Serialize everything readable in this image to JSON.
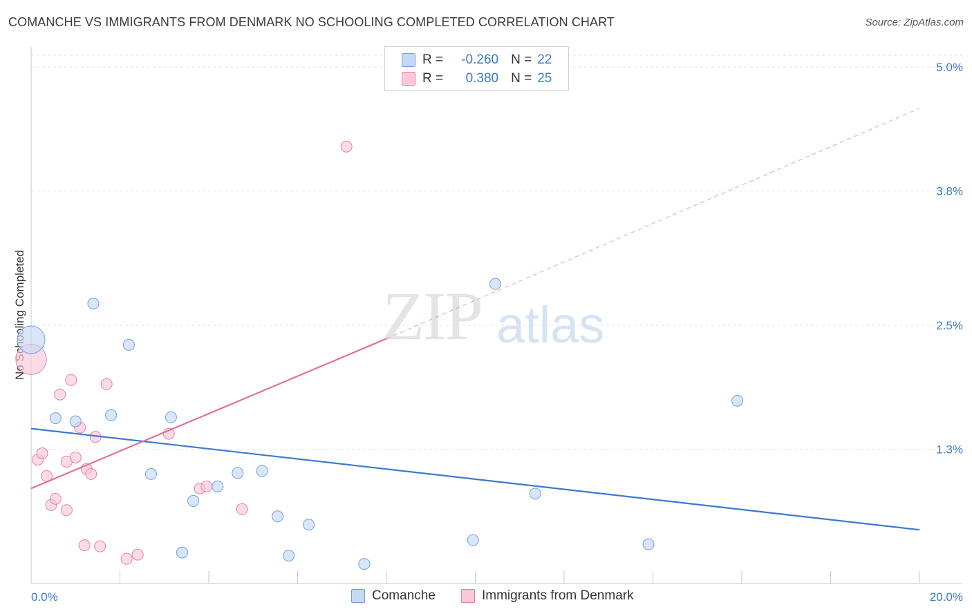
{
  "title": "COMANCHE VS IMMIGRANTS FROM DENMARK NO SCHOOLING COMPLETED CORRELATION CHART",
  "source": "Source: ZipAtlas.com",
  "watermark": {
    "zip": "ZIP",
    "atlas": "atlas"
  },
  "legend": {
    "rows": [
      {
        "r_label": "R =",
        "r_value": "-0.260",
        "n_label": "N =",
        "n_value": "22"
      },
      {
        "r_label": "R =",
        "r_value": "0.380",
        "n_label": "N =",
        "n_value": "25"
      }
    ]
  },
  "bottom_legend": [
    "Comanche",
    "Immigrants from Denmark"
  ],
  "chart_data": {
    "type": "scatter",
    "ylabel": "No Schooling Completed",
    "xlim": [
      0,
      20
    ],
    "ylim": [
      0,
      5.2
    ],
    "x_tick_labels": [
      "0.0%",
      "20.0%"
    ],
    "y_ticks": [
      1.3,
      2.5,
      3.8,
      5.0
    ],
    "y_tick_labels": [
      "1.3%",
      "2.5%",
      "3.8%",
      "5.0%"
    ],
    "grid": true,
    "colors": {
      "comanche": "#6f9ee0",
      "comanche_fill": "#c5d9f4",
      "denmark": "#e87fa3",
      "denmark_fill": "#f9c9d8",
      "blue_line": "#3b78cf",
      "pink_line": "#e2709a",
      "axis_text": "#3b78cf"
    },
    "series": [
      {
        "name": "Comanche",
        "points": [
          {
            "x": 0.0,
            "y": 2.36,
            "big": true
          },
          {
            "x": 0.55,
            "y": 1.6
          },
          {
            "x": 1.0,
            "y": 1.57
          },
          {
            "x": 1.4,
            "y": 2.71
          },
          {
            "x": 1.8,
            "y": 1.63
          },
          {
            "x": 2.2,
            "y": 2.31
          },
          {
            "x": 2.7,
            "y": 1.06
          },
          {
            "x": 3.15,
            "y": 1.61
          },
          {
            "x": 3.4,
            "y": 0.3
          },
          {
            "x": 3.65,
            "y": 0.8
          },
          {
            "x": 4.2,
            "y": 0.94
          },
          {
            "x": 4.65,
            "y": 1.07
          },
          {
            "x": 5.2,
            "y": 1.09
          },
          {
            "x": 5.55,
            "y": 0.65
          },
          {
            "x": 5.8,
            "y": 0.27
          },
          {
            "x": 6.25,
            "y": 0.57
          },
          {
            "x": 7.5,
            "y": 0.19
          },
          {
            "x": 9.95,
            "y": 0.42
          },
          {
            "x": 10.45,
            "y": 2.9
          },
          {
            "x": 11.35,
            "y": 0.87
          },
          {
            "x": 13.9,
            "y": 0.38
          },
          {
            "x": 15.9,
            "y": 1.77
          }
        ],
        "trend": {
          "x0": 0,
          "y0": 1.5,
          "x1": 20,
          "y1": 0.52
        }
      },
      {
        "name": "Immigrants from Denmark",
        "points": [
          {
            "x": 0.0,
            "y": 2.17,
            "big": true
          },
          {
            "x": 0.15,
            "y": 1.2
          },
          {
            "x": 0.25,
            "y": 1.26
          },
          {
            "x": 0.35,
            "y": 1.04
          },
          {
            "x": 0.45,
            "y": 0.76
          },
          {
            "x": 0.55,
            "y": 0.82
          },
          {
            "x": 0.65,
            "y": 1.83
          },
          {
            "x": 0.8,
            "y": 1.18
          },
          {
            "x": 0.8,
            "y": 0.71
          },
          {
            "x": 0.9,
            "y": 1.97
          },
          {
            "x": 1.0,
            "y": 1.22
          },
          {
            "x": 1.1,
            "y": 1.51
          },
          {
            "x": 1.2,
            "y": 0.37
          },
          {
            "x": 1.25,
            "y": 1.11
          },
          {
            "x": 1.35,
            "y": 1.06
          },
          {
            "x": 1.45,
            "y": 1.42
          },
          {
            "x": 1.55,
            "y": 0.36
          },
          {
            "x": 1.7,
            "y": 1.93
          },
          {
            "x": 2.15,
            "y": 0.24
          },
          {
            "x": 2.4,
            "y": 0.28
          },
          {
            "x": 3.1,
            "y": 1.45
          },
          {
            "x": 3.8,
            "y": 0.92
          },
          {
            "x": 3.95,
            "y": 0.94
          },
          {
            "x": 4.75,
            "y": 0.72
          },
          {
            "x": 7.1,
            "y": 4.23
          }
        ],
        "trend": {
          "x0": 0,
          "y0": 0.92,
          "x1": 8,
          "y1": 2.37
        },
        "trend_dashed": {
          "x0": 8,
          "y0": 2.37,
          "x1": 20,
          "y1": 4.6
        }
      }
    ]
  }
}
